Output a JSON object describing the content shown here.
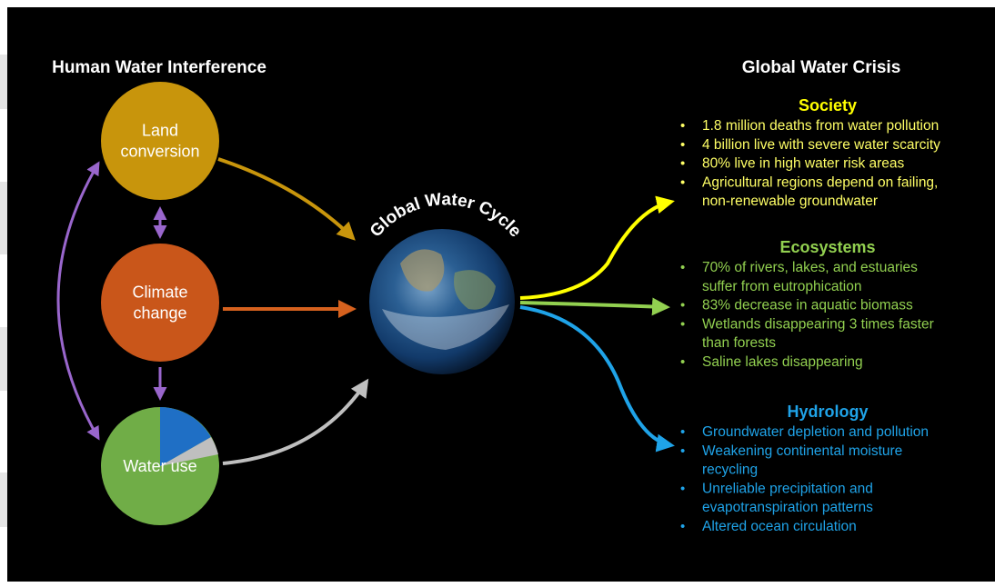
{
  "left_title": "Human Water Interference",
  "drivers": [
    {
      "label": [
        "Land",
        "conversion"
      ]
    },
    {
      "label": [
        "Climate",
        "change"
      ]
    },
    {
      "label": [
        "Water use"
      ]
    }
  ],
  "center_label": "Global Water Cycle",
  "right_title": "Global Water Crisis",
  "sections": [
    {
      "heading": "Society",
      "items": [
        [
          "1.8 million deaths from water pollution"
        ],
        [
          "4 billion live with severe water scarcity"
        ],
        [
          "80% live in high water risk areas"
        ],
        [
          "Agricultural regions depend on failing,",
          "non-renewable groundwater"
        ]
      ]
    },
    {
      "heading": "Ecosystems",
      "items": [
        [
          "70% of rivers, lakes, and estuaries",
          "suffer from eutrophication"
        ],
        [
          "83% decrease in aquatic biomass"
        ],
        [
          "Wetlands disappearing 3 times faster",
          "than forests"
        ],
        [
          "Saline lakes disappearing"
        ]
      ]
    },
    {
      "heading": "Hydrology",
      "items": [
        [
          "Groundwater depletion and pollution"
        ],
        [
          "Weakening continental moisture",
          "recycling"
        ],
        [
          "Unreliable precipitation and",
          "evapotranspiration patterns"
        ],
        [
          "Altered ocean circulation"
        ]
      ]
    }
  ]
}
